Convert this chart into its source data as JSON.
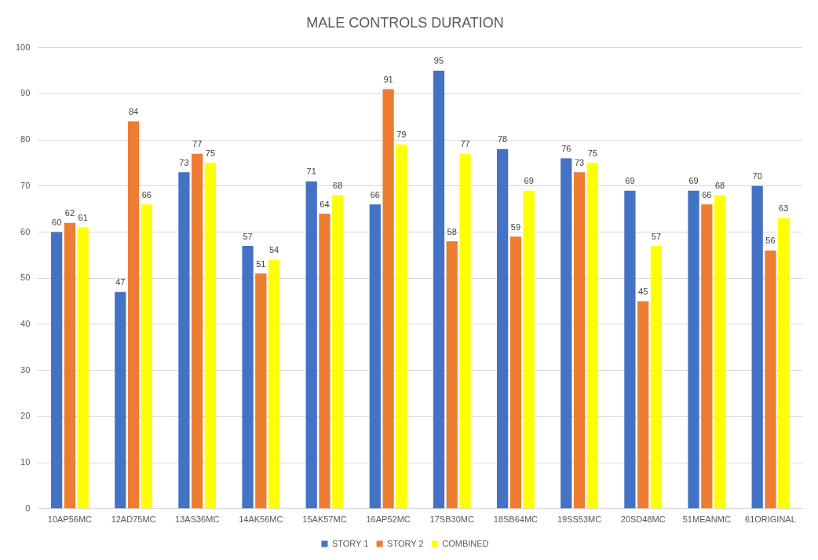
{
  "chart_data": {
    "type": "bar",
    "title": "MALE CONTROLS DURATION",
    "categories": [
      "10AP56MC",
      "12AD75MC",
      "13AS36MC",
      "14AK56MC",
      "15AK57MC",
      "16AP52MC",
      "17SB30MC",
      "18SB64MC",
      "19SS53MC",
      "20SD48MC",
      "51MEANMC",
      "61ORIGINAL"
    ],
    "series": [
      {
        "name": "STORY 1",
        "color": "#4472c4",
        "values": [
          60,
          47,
          73,
          57,
          71,
          66,
          95,
          78,
          76,
          69,
          69,
          70
        ]
      },
      {
        "name": "STORY 2",
        "color": "#ed7d31",
        "values": [
          62,
          84,
          77,
          51,
          64,
          91,
          58,
          59,
          73,
          45,
          66,
          56
        ]
      },
      {
        "name": "COMBINED",
        "color": "#ffff00",
        "values": [
          61,
          66,
          75,
          54,
          68,
          79,
          77,
          69,
          75,
          57,
          68,
          63
        ]
      }
    ],
    "ylim": [
      0,
      100
    ],
    "yticks": [
      0,
      10,
      20,
      30,
      40,
      50,
      60,
      70,
      80,
      90,
      100
    ],
    "grid": "y",
    "legend": "bottom",
    "data_labels": true
  }
}
